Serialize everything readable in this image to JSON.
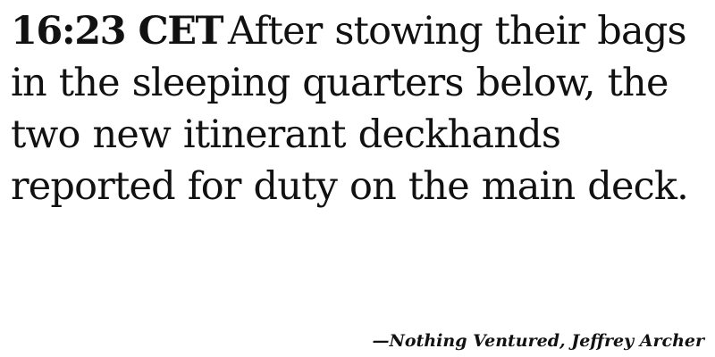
{
  "quote": {
    "timestamp": "16:23 CET",
    "lines": [
      "After stowing their bags",
      "in the sleeping quarters below, the",
      "two new itinerant deckhands",
      "reported for duty on the main deck."
    ]
  },
  "attribution": "—Nothing Ventured, Jeffrey Archer"
}
